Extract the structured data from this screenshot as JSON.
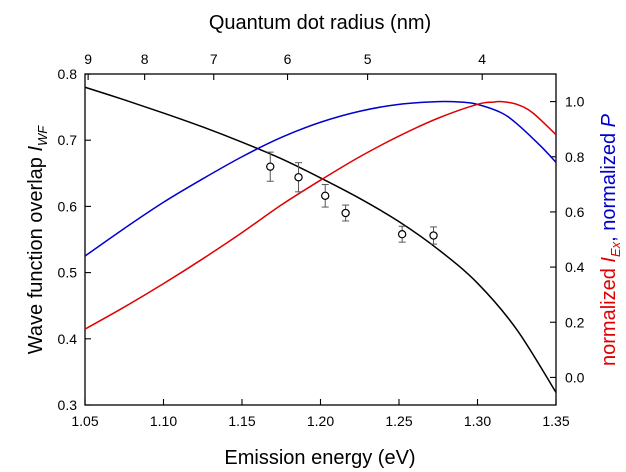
{
  "chart_data": {
    "type": "line",
    "x_axis_bottom": {
      "label": "Emission energy (eV)",
      "range": [
        1.05,
        1.35
      ],
      "ticks": [
        "1.05",
        "1.10",
        "1.15",
        "1.20",
        "1.25",
        "1.30",
        "1.35"
      ],
      "tick_values": [
        1.05,
        1.1,
        1.15,
        1.2,
        1.25,
        1.3,
        1.35
      ]
    },
    "x_axis_top": {
      "label": "Quantum dot radius (nm)",
      "ticks": [
        "9",
        "8",
        "7",
        "6",
        "5",
        "4"
      ],
      "tick_energy_positions": [
        1.052,
        1.088,
        1.132,
        1.179,
        1.23,
        1.303
      ]
    },
    "y_axis_left": {
      "label_main": "Wave function overlap ",
      "label_italic": "I",
      "label_sub": "WF",
      "range": [
        0.3,
        0.8
      ],
      "ticks": [
        "0.3",
        "0.4",
        "0.5",
        "0.6",
        "0.7",
        "0.8"
      ],
      "tick_values": [
        0.3,
        0.4,
        0.5,
        0.6,
        0.7,
        0.8
      ]
    },
    "y_axis_right": {
      "label_part1": "normalized ",
      "label_italic1": "I",
      "label_sub1": "Ex",
      "label_part2": ", normalized ",
      "label_italic2": "P",
      "color1": "#e00000",
      "color2": "#0000cc",
      "range": [
        -0.1,
        1.1
      ],
      "ticks": [
        "0.0",
        "0.2",
        "0.4",
        "0.6",
        "0.8",
        "1.0"
      ],
      "tick_values": [
        0.0,
        0.2,
        0.4,
        0.6,
        0.8,
        1.0
      ]
    },
    "series": [
      {
        "color": "#000000",
        "axis": "left",
        "x": [
          1.05,
          1.075,
          1.1,
          1.125,
          1.15,
          1.175,
          1.2,
          1.225,
          1.25,
          1.275,
          1.3,
          1.325,
          1.35
        ],
        "y": [
          0.78,
          0.761,
          0.741,
          0.72,
          0.697,
          0.672,
          0.643,
          0.612,
          0.577,
          0.535,
          0.484,
          0.414,
          0.319
        ]
      },
      {
        "color": "#0000cc",
        "axis": "right",
        "x": [
          1.05,
          1.075,
          1.1,
          1.125,
          1.15,
          1.175,
          1.2,
          1.225,
          1.25,
          1.275,
          1.29,
          1.3,
          1.315,
          1.325,
          1.34,
          1.35
        ],
        "y": [
          0.44,
          0.54,
          0.635,
          0.72,
          0.8,
          0.87,
          0.925,
          0.965,
          0.99,
          1.0,
          0.998,
          0.99,
          0.96,
          0.92,
          0.84,
          0.78
        ]
      },
      {
        "color": "#e00000",
        "axis": "right",
        "x": [
          1.05,
          1.075,
          1.1,
          1.125,
          1.15,
          1.175,
          1.2,
          1.225,
          1.25,
          1.275,
          1.3,
          1.31,
          1.315,
          1.325,
          1.335,
          1.35
        ],
        "y": [
          0.175,
          0.255,
          0.34,
          0.43,
          0.525,
          0.625,
          0.715,
          0.8,
          0.875,
          0.94,
          0.99,
          0.998,
          1.0,
          0.99,
          0.96,
          0.88
        ]
      }
    ],
    "markers": {
      "axis": "left",
      "points": [
        {
          "x": 1.168,
          "y": 0.66,
          "err": 0.022
        },
        {
          "x": 1.186,
          "y": 0.644,
          "err": 0.022
        },
        {
          "x": 1.203,
          "y": 0.616,
          "err": 0.017
        },
        {
          "x": 1.216,
          "y": 0.59,
          "err": 0.012
        },
        {
          "x": 1.252,
          "y": 0.558,
          "err": 0.012
        },
        {
          "x": 1.272,
          "y": 0.556,
          "err": 0.013
        }
      ]
    },
    "grid": false
  }
}
